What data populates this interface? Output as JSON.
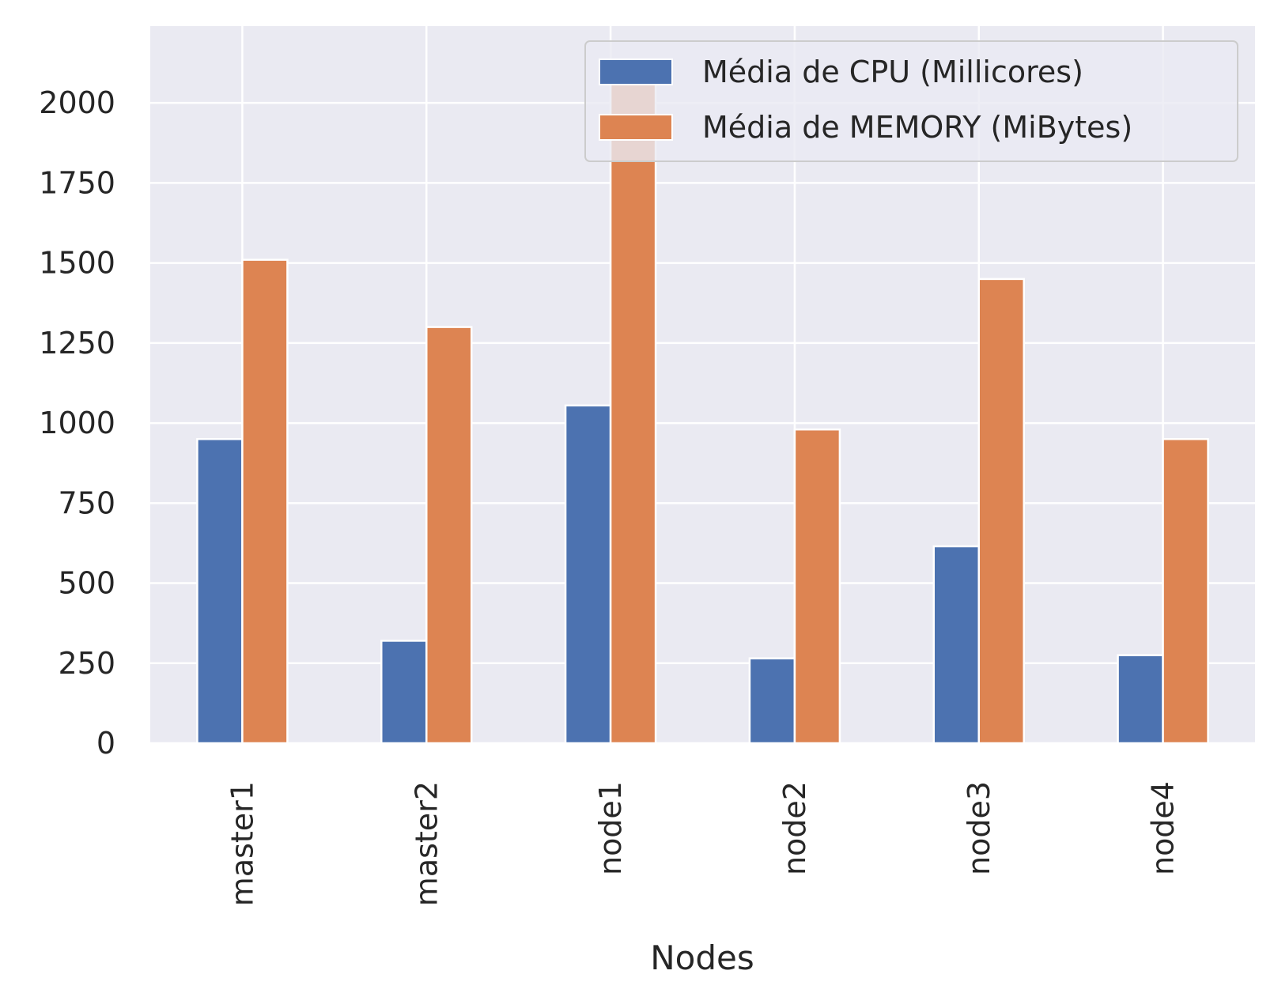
{
  "chart_data": {
    "type": "bar",
    "categories": [
      "master1",
      "master2",
      "node1",
      "node2",
      "node3",
      "node4"
    ],
    "series": [
      {
        "name": "Média de CPU (Millicores)",
        "color": "#4c72b0",
        "values": [
          950,
          320,
          1055,
          265,
          615,
          275
        ]
      },
      {
        "name": "Média de MEMORY (MiBytes)",
        "color": "#dd8452",
        "values": [
          1510,
          1300,
          2060,
          980,
          1450,
          950
        ]
      }
    ],
    "title": "",
    "xlabel": "Nodes",
    "ylabel": "",
    "ylim": [
      0,
      2240
    ],
    "yticks": [
      0,
      250,
      500,
      750,
      1000,
      1250,
      1500,
      1750,
      2000
    ],
    "grid": true,
    "legend_position": "top-right",
    "style": {
      "plot_background": "#eaeaf2",
      "grid_color": "#ffffff",
      "text_color": "#262626"
    }
  }
}
